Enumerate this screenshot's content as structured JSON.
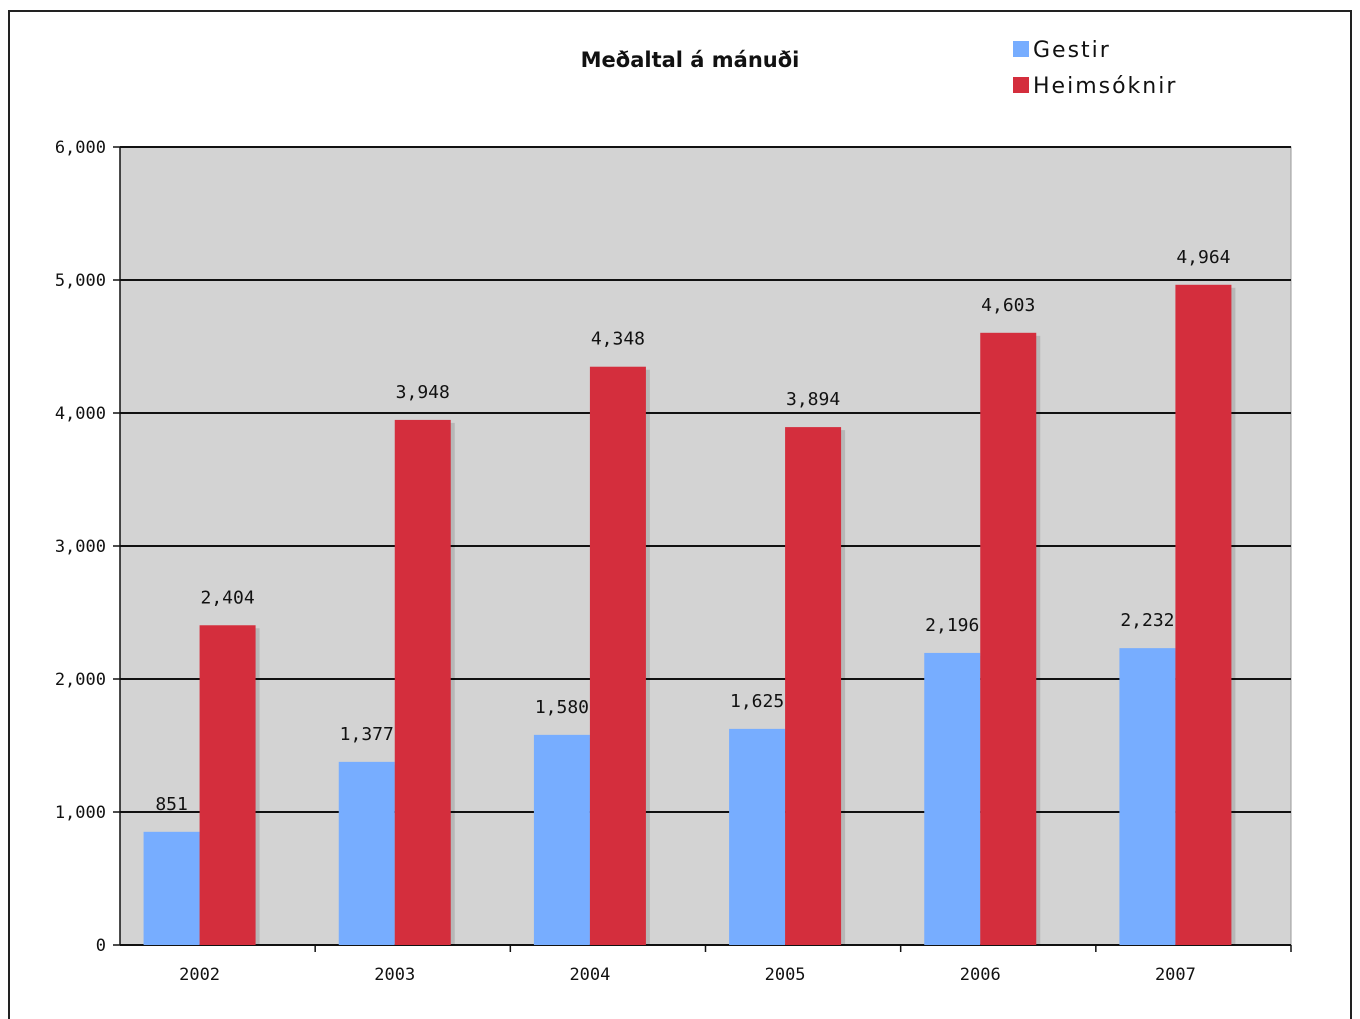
{
  "chart_data": {
    "type": "bar",
    "title": "Meðaltal á mánuði",
    "categories": [
      "2002",
      "2003",
      "2004",
      "2005",
      "2006",
      "2007"
    ],
    "series": [
      {
        "name": "Gestir",
        "color": "#77adff",
        "values": [
          851,
          1377,
          1580,
          1625,
          2196,
          2232
        ],
        "labels": [
          "851",
          "1,377",
          "1,580",
          "1,625",
          "2,196",
          "2,232"
        ]
      },
      {
        "name": "Heimsóknir",
        "color": "#d42e3d",
        "values": [
          2404,
          3948,
          4348,
          3894,
          4603,
          4964
        ],
        "labels": [
          "2,404",
          "3,948",
          "4,348",
          "3,894",
          "4,603",
          "4,964"
        ]
      }
    ],
    "yticks": [
      0,
      1000,
      2000,
      3000,
      4000,
      5000,
      6000
    ],
    "ytick_labels": [
      "0",
      "1,000",
      "2,000",
      "3,000",
      "4,000",
      "5,000",
      "6,000"
    ],
    "ylim": [
      0,
      6000
    ],
    "grid": true,
    "plot_background": "#d3d3d3",
    "legend_position": "top-right"
  }
}
